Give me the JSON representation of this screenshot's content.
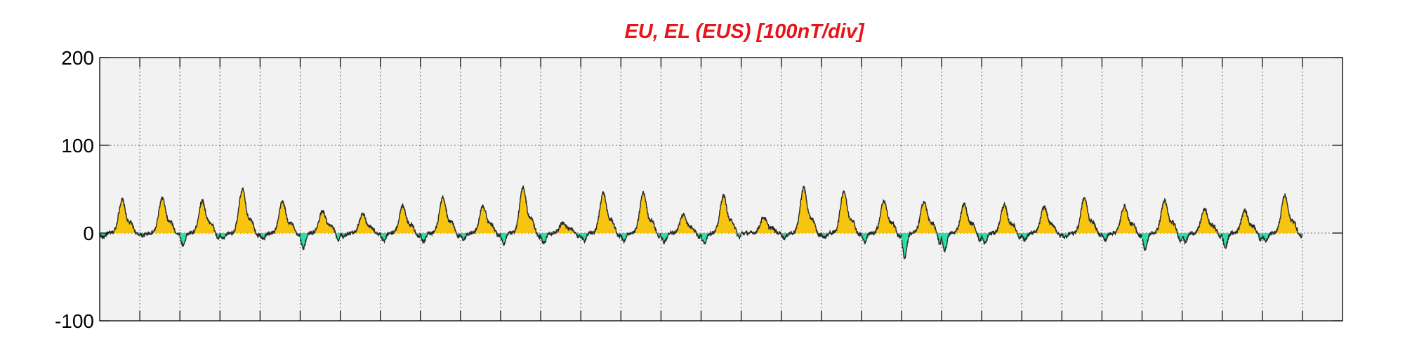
{
  "chart_data": {
    "type": "area",
    "title": "EU, EL (EUS)  [100nT/div]",
    "xlabel": "",
    "ylabel": "",
    "ylim": [
      -100,
      200
    ],
    "yticks": [
      200,
      100,
      0,
      -100
    ],
    "y_tick_labels": [
      "200",
      "100",
      "0",
      "-100"
    ],
    "x_divisions": 31,
    "grid": true,
    "colors": {
      "positive_fill": "#f7c511",
      "negative_fill": "#2de0a8",
      "line": "#2a2a2a",
      "title": "#e8141a",
      "plot_background": "#f2f2f2"
    },
    "series": [
      {
        "name": "EU",
        "sign": "positive"
      },
      {
        "name": "EL",
        "sign": "negative"
      }
    ],
    "daily_profile": [
      {
        "peak": 38,
        "dip": -5
      },
      {
        "peak": 40,
        "dip": -3
      },
      {
        "peak": 37,
        "dip": -14
      },
      {
        "peak": 50,
        "dip": -7
      },
      {
        "peak": 36,
        "dip": -7
      },
      {
        "peak": 25,
        "dip": -18
      },
      {
        "peak": 22,
        "dip": -4
      },
      {
        "peak": 31,
        "dip": -9
      },
      {
        "peak": 40,
        "dip": -10
      },
      {
        "peak": 31,
        "dip": -7
      },
      {
        "peak": 52,
        "dip": -13
      },
      {
        "peak": 12,
        "dip": -12
      },
      {
        "peak": 46,
        "dip": -9
      },
      {
        "peak": 46,
        "dip": -10
      },
      {
        "peak": 21,
        "dip": -11
      },
      {
        "peak": 43,
        "dip": -12
      },
      {
        "peak": 18,
        "dip": null
      },
      {
        "peak": 52,
        "dip": -6
      },
      {
        "peak": 48,
        "dip": -5
      },
      {
        "peak": 37,
        "dip": -10
      },
      {
        "peak": 36,
        "dip": -28
      },
      {
        "peak": 33,
        "dip": -20
      },
      {
        "peak": 32,
        "dip": -12
      },
      {
        "peak": 30,
        "dip": -8
      },
      {
        "peak": 40,
        "dip": -5
      },
      {
        "peak": 31,
        "dip": -8
      },
      {
        "peak": 37,
        "dip": -19
      },
      {
        "peak": 27,
        "dip": -10
      },
      {
        "peak": 26,
        "dip": -17
      },
      {
        "peak": 43,
        "dip": -9
      }
    ]
  }
}
